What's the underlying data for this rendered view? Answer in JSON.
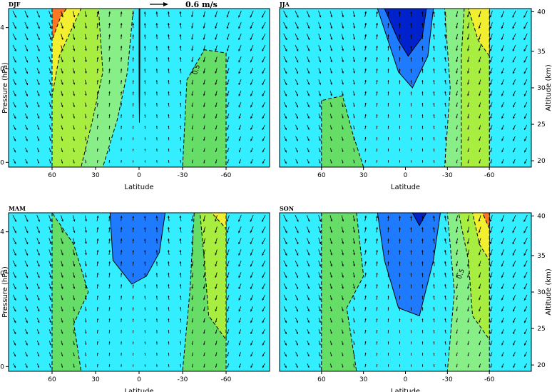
{
  "chart_data": {
    "type": "contour-vector",
    "reference_vector": {
      "label": "0.6 m/s"
    },
    "axes": {
      "xlabel": "Latitude",
      "ylabel_left": "Pressure (hPa)",
      "ylabel_right": "Altitude (km)",
      "x_tick_labels": [
        "60",
        "30",
        "0",
        "-30",
        "-60"
      ],
      "pressure_tick_labels": [
        "4",
        "10",
        "50"
      ],
      "altitude_tick_labels": [
        "40",
        "35",
        "30",
        "25",
        "20"
      ]
    },
    "panels": [
      {
        "name": "DJF",
        "contour_label": "0.5",
        "regions": [
          {
            "level": 0.5,
            "color": "#1e7bff",
            "pts": [
              [
                -0.1,
                0
              ],
              [
                -0.55,
                0
              ],
              [
                -0.55,
                0.3
              ],
              [
                -0.45,
                0.55
              ],
              [
                -0.25,
                0.72
              ],
              [
                -0.05,
                0.55
              ],
              [
                -0.02,
                0.3
              ]
            ]
          },
          {
            "level": 0.0,
            "color": "#0022cc",
            "pts": [
              [
                -0.08,
                0
              ],
              [
                -0.5,
                0
              ],
              [
                -0.45,
                0.2
              ],
              [
                -0.3,
                0.43
              ],
              [
                -0.15,
                0.3
              ]
            ]
          },
          {
            "level": 1.0,
            "color": "#88ee88",
            "pts": [
              [
                60,
                0
              ],
              [
                60,
                1
              ],
              [
                25,
                1
              ],
              [
                15,
                0.7
              ],
              [
                8,
                0.4
              ],
              [
                4,
                0
              ]
            ]
          },
          {
            "level": 1.5,
            "color": "#a8ee40",
            "pts": [
              [
                60,
                0
              ],
              [
                60,
                1
              ],
              [
                40,
                1
              ],
              [
                32,
                0.7
              ],
              [
                25,
                0.4
              ],
              [
                28,
                0
              ]
            ]
          },
          {
            "level": 2.0,
            "color": "#f2ee30",
            "pts": [
              [
                60,
                0
              ],
              [
                60,
                0.55
              ],
              [
                55,
                0.3
              ],
              [
                45,
                0.1
              ],
              [
                40,
                0
              ]
            ]
          },
          {
            "level": 2.5,
            "color": "#ff7722",
            "pts": [
              [
                60,
                0
              ],
              [
                60,
                0.2
              ],
              [
                54,
                0.05
              ],
              [
                50,
                0
              ]
            ]
          },
          {
            "level": 1.0,
            "color": "#66dd66",
            "pts": [
              [
                -30,
                1
              ],
              [
                -60,
                1
              ],
              [
                -60,
                0.28
              ],
              [
                -45,
                0.26
              ],
              [
                -33,
                0.45
              ]
            ]
          }
        ]
      },
      {
        "name": "JJA",
        "regions": [
          {
            "level": 0.5,
            "color": "#1e7bff",
            "pts": [
              [
                20,
                0
              ],
              [
                -20,
                0
              ],
              [
                -16,
                0.3
              ],
              [
                -5,
                0.5
              ],
              [
                5,
                0.4
              ]
            ]
          },
          {
            "level": 0.0,
            "color": "#0022cc",
            "pts": [
              [
                15,
                0
              ],
              [
                -15,
                0
              ],
              [
                -12,
                0.18
              ],
              [
                -2,
                0.3
              ],
              [
                5,
                0.2
              ]
            ]
          },
          {
            "level": 1.0,
            "color": "#66dd66",
            "pts": [
              [
                60,
                0.58
              ],
              [
                60,
                1
              ],
              [
                30,
                1
              ],
              [
                38,
                0.78
              ],
              [
                45,
                0.55
              ]
            ]
          },
          {
            "level": 1.0,
            "color": "#88ee88",
            "pts": [
              [
                -28,
                1
              ],
              [
                -60,
                1
              ],
              [
                -60,
                0
              ],
              [
                -28,
                0
              ],
              [
                -32,
                0.5
              ]
            ]
          },
          {
            "level": 1.5,
            "color": "#a8ee40",
            "pts": [
              [
                -40,
                1
              ],
              [
                -60,
                1
              ],
              [
                -60,
                0
              ],
              [
                -42,
                0
              ],
              [
                -40,
                0.3
              ]
            ]
          },
          {
            "level": 2.0,
            "color": "#f2ee30",
            "pts": [
              [
                -45,
                0
              ],
              [
                -60,
                0
              ],
              [
                -60,
                0.3
              ],
              [
                -52,
                0.2
              ]
            ]
          }
        ]
      },
      {
        "name": "MAM",
        "regions": [
          {
            "level": 0.5,
            "color": "#1e7bff",
            "pts": [
              [
                20,
                0
              ],
              [
                -18,
                0
              ],
              [
                -14,
                0.25
              ],
              [
                -5,
                0.4
              ],
              [
                5,
                0.45
              ],
              [
                18,
                0.3
              ]
            ]
          },
          {
            "level": 1.0,
            "color": "#66dd66",
            "pts": [
              [
                60,
                0
              ],
              [
                60,
                1
              ],
              [
                40,
                1
              ],
              [
                45,
                0.7
              ],
              [
                35,
                0.5
              ],
              [
                45,
                0.2
              ]
            ]
          },
          {
            "level": 1.0,
            "color": "#66dd66",
            "pts": [
              [
                -30,
                1
              ],
              [
                -60,
                1
              ],
              [
                -60,
                0
              ],
              [
                -38,
                0
              ],
              [
                -35,
                0.5
              ]
            ]
          },
          {
            "level": 1.5,
            "color": "#a8ee40",
            "pts": [
              [
                -42,
                0
              ],
              [
                -60,
                0
              ],
              [
                -60,
                0.8
              ],
              [
                -48,
                0.65
              ],
              [
                -45,
                0.3
              ]
            ]
          },
          {
            "level": 2.0,
            "color": "#f2ee30",
            "pts": [
              [
                -50,
                0
              ],
              [
                -60,
                0
              ],
              [
                -60,
                0.1
              ]
            ]
          }
        ]
      },
      {
        "name": "SON",
        "contour_label": "0.5",
        "regions": [
          {
            "level": 0.5,
            "color": "#1e7bff",
            "pts": [
              [
                20,
                0
              ],
              [
                -25,
                0
              ],
              [
                -20,
                0.3
              ],
              [
                -10,
                0.65
              ],
              [
                5,
                0.6
              ],
              [
                15,
                0.3
              ]
            ]
          },
          {
            "level": 0.0,
            "color": "#0022cc",
            "pts": [
              [
                -5,
                0
              ],
              [
                -15,
                0
              ],
              [
                -10,
                0.08
              ]
            ]
          },
          {
            "level": 1.0,
            "color": "#66dd66",
            "pts": [
              [
                60,
                0
              ],
              [
                60,
                1
              ],
              [
                35,
                1
              ],
              [
                42,
                0.6
              ],
              [
                30,
                0.4
              ],
              [
                35,
                0
              ]
            ]
          },
          {
            "level": 1.0,
            "color": "#88ee88",
            "pts": [
              [
                -30,
                1
              ],
              [
                -60,
                1
              ],
              [
                -60,
                0
              ],
              [
                -30,
                0
              ],
              [
                -35,
                0.5
              ]
            ]
          },
          {
            "level": 1.5,
            "color": "#a8ee40",
            "pts": [
              [
                -38,
                0
              ],
              [
                -60,
                0
              ],
              [
                -60,
                0.8
              ],
              [
                -48,
                0.65
              ],
              [
                -45,
                0.3
              ]
            ]
          },
          {
            "level": 2.0,
            "color": "#f2ee30",
            "pts": [
              [
                -48,
                0
              ],
              [
                -60,
                0
              ],
              [
                -60,
                0.3
              ],
              [
                -53,
                0.2
              ]
            ]
          },
          {
            "level": 2.5,
            "color": "#ff7722",
            "pts": [
              [
                -55,
                0
              ],
              [
                -60,
                0
              ],
              [
                -60,
                0.1
              ]
            ]
          }
        ]
      }
    ]
  }
}
